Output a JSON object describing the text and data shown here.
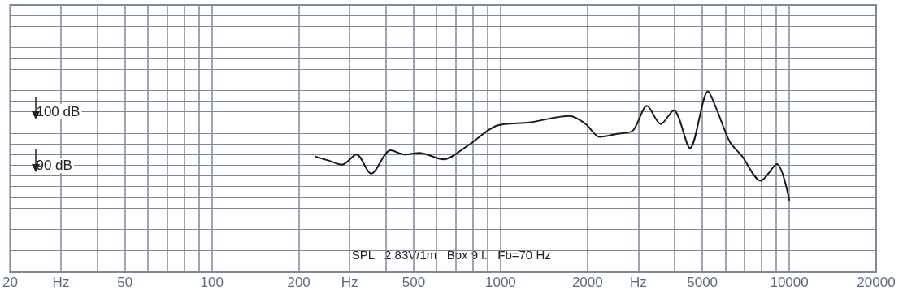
{
  "chart_data": {
    "type": "line",
    "x": [
      229,
      256,
      282,
      317,
      356,
      416,
      465,
      522,
      634,
      771,
      968,
      1254,
      1734,
      1972,
      2203,
      2557,
      2876,
      3214,
      3589,
      3980,
      4530,
      5227,
      5570,
      6222,
      6857,
      7962,
      9058,
      10000
    ],
    "series": [
      {
        "color": "#1a1a1a",
        "values": [
          91.6,
          90.8,
          90.1,
          92.0,
          88.4,
          92.8,
          92.0,
          92.3,
          91.1,
          93.7,
          97.4,
          98.0,
          99.2,
          97.7,
          95.3,
          95.9,
          96.5,
          101.1,
          97.7,
          100.3,
          93.2,
          103.8,
          100.8,
          94.4,
          91.7,
          87.1,
          90.2,
          83.5
        ]
      }
    ],
    "log": "x",
    "xlim": [
      20,
      20000
    ],
    "xlabel": "Hz",
    "xticks": [
      20,
      {
        "value": 30,
        "label": null
      },
      {
        "value": 40,
        "label": null
      },
      50,
      {
        "value": 60,
        "label": null
      },
      {
        "value": 70,
        "label": null
      },
      {
        "value": 80,
        "label": null
      },
      {
        "value": 90,
        "label": null
      },
      100,
      200,
      {
        "value": 300,
        "label": null
      },
      {
        "value": 400,
        "label": null
      },
      500,
      {
        "value": 600,
        "label": null
      },
      {
        "value": 700,
        "label": null
      },
      {
        "value": 800,
        "label": null
      },
      {
        "value": 900,
        "label": null
      },
      1000,
      2000,
      {
        "value": 3000,
        "label": null
      },
      {
        "value": 4000,
        "label": null
      },
      5000,
      {
        "value": 6000,
        "label": null
      },
      {
        "value": 7000,
        "label": null
      },
      {
        "value": 8000,
        "label": null
      },
      {
        "value": 9000,
        "label": null
      },
      10000,
      20000
    ],
    "ylim": [
      70,
      120
    ],
    "yticks": [
      {
        "value": 70,
        "label": null
      },
      {
        "value": 72,
        "label": null
      },
      {
        "value": 74,
        "label": null
      },
      {
        "value": 76,
        "label": null
      },
      {
        "value": 78,
        "label": null
      },
      {
        "value": 80,
        "label": null
      },
      {
        "value": 82,
        "label": null
      },
      {
        "value": 84,
        "label": null
      },
      {
        "value": 86,
        "label": null
      },
      {
        "value": 88,
        "label": null
      },
      {
        "value": 90,
        "label": "90 dB"
      },
      {
        "value": 92,
        "label": null
      },
      {
        "value": 94,
        "label": null
      },
      {
        "value": 96,
        "label": null
      },
      {
        "value": 98,
        "label": null
      },
      {
        "value": 100,
        "label": "100 dB"
      },
      {
        "value": 102,
        "label": null
      },
      {
        "value": 104,
        "label": null
      },
      {
        "value": 106,
        "label": null
      },
      {
        "value": 108,
        "label": null
      },
      {
        "value": 110,
        "label": null
      },
      {
        "value": 112,
        "label": null
      },
      {
        "value": 114,
        "label": null
      },
      {
        "value": 116,
        "label": null
      },
      {
        "value": 118,
        "label": null
      },
      {
        "value": 120,
        "label": null
      }
    ],
    "grid": true,
    "marker": "none",
    "line_style": "solid",
    "annotations": [
      "SPL   2,83V/1m   Box 9 l.   Fb=70 Hz"
    ]
  }
}
